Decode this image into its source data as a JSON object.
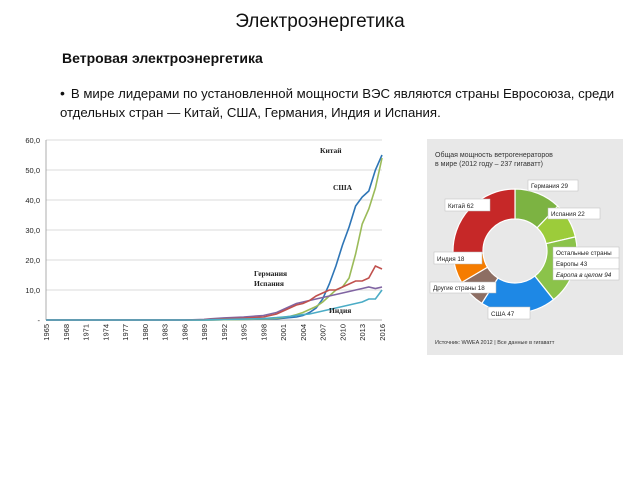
{
  "slide": {
    "title": "Электроэнергетика",
    "subtitle": "Ветровая электроэнергетика",
    "bullet_symbol": "•",
    "bullet": "В мире лидерами по установленной мощности ВЭС являются страны Евросоюза, среди отдельных стран — Китай, США, Германия, Индия и Испания."
  },
  "chart_data": [
    {
      "type": "line",
      "title": "",
      "xlabel": "",
      "ylabel": "",
      "ylim": [
        0,
        60
      ],
      "yticks": [
        "60,0",
        "50,0",
        "40,0",
        "30,0",
        "20,0",
        "10,0",
        "-"
      ],
      "xticks": [
        "1965",
        "1968",
        "1971",
        "1974",
        "1977",
        "1980",
        "1983",
        "1986",
        "1989",
        "1992",
        "1995",
        "1998",
        "2001",
        "2004",
        "2007",
        "2010",
        "2013",
        "2016"
      ],
      "grid": true,
      "x": [
        1965,
        1968,
        1971,
        1974,
        1977,
        1980,
        1983,
        1986,
        1989,
        1990,
        1992,
        1995,
        1998,
        2000,
        2001,
        2002,
        2003,
        2004,
        2005,
        2006,
        2007,
        2008,
        2009,
        2010,
        2011,
        2012,
        2013,
        2014,
        2015,
        2016
      ],
      "series": [
        {
          "name": "Китай",
          "color": "#2e75b6",
          "values": [
            0,
            0,
            0,
            0,
            0,
            0,
            0,
            0,
            0,
            0,
            0.1,
            0.2,
            0.3,
            0.4,
            0.6,
            0.8,
            1.0,
            1.5,
            2.5,
            4,
            7,
            12,
            18,
            25,
            31,
            38,
            41,
            43,
            50,
            55
          ]
        },
        {
          "name": "США",
          "color": "#9bbb59",
          "values": [
            0,
            0,
            0,
            0,
            0,
            0,
            0,
            0,
            0,
            0,
            0.1,
            0.2,
            0.4,
            0.6,
            0.9,
            1.2,
            1.8,
            2.5,
            3.5,
            4.5,
            6,
            8,
            10,
            11,
            14,
            22,
            32,
            37,
            44,
            54
          ]
        },
        {
          "name": "Германия",
          "color": "#8064a2",
          "values": [
            0,
            0,
            0,
            0,
            0,
            0,
            0,
            0,
            0.2,
            0.4,
            0.7,
            1.0,
            1.5,
            2.5,
            3.5,
            4.5,
            5.5,
            6,
            6.5,
            7,
            7.5,
            8,
            8.5,
            9,
            9.5,
            10,
            10.5,
            11,
            10.5,
            11
          ]
        },
        {
          "name": "Испания",
          "color": "#c0504d",
          "values": [
            0,
            0,
            0,
            0,
            0,
            0,
            0,
            0,
            0.1,
            0.2,
            0.4,
            0.6,
            1.0,
            2,
            3,
            4,
            5,
            5.5,
            6.5,
            8,
            9,
            10,
            10,
            11,
            12,
            13,
            13,
            14,
            18,
            17
          ]
        },
        {
          "name": "Индия",
          "color": "#4bacc6",
          "values": [
            0,
            0,
            0,
            0,
            0,
            0,
            0,
            0,
            0,
            0.1,
            0.2,
            0.3,
            0.5,
            0.8,
            1,
            1.2,
            1.5,
            1.8,
            2,
            2.5,
            3,
            3.5,
            4,
            4.5,
            5,
            5.5,
            6,
            7,
            7,
            10
          ]
        }
      ],
      "labels_shown": [
        "Китай",
        "США",
        "Германия",
        "Испания",
        "Индия"
      ]
    },
    {
      "type": "pie",
      "title": "Общая мощность ветрогенераторов в мире (2012 году — 237 гигаватт)",
      "title_line1": "Общая мощность ветрогенераторов",
      "title_line2": "в мире (2012 году – 237 гигаватт)",
      "source": "Источник: WWEA 2012 | Все данные в гигаватт",
      "slices": [
        {
          "label": "Германия",
          "value": 29,
          "color": "#7cb342"
        },
        {
          "label": "Испания",
          "value": 22,
          "color": "#9ccc3a"
        },
        {
          "label": "Остальные страны Европы",
          "value": 43,
          "color": "#8bc34a",
          "sub": "Европа в целом 94"
        },
        {
          "label": "США",
          "value": 47,
          "color": "#1e88e5"
        },
        {
          "label": "Другие страны",
          "value": 18,
          "color": "#8d6e63"
        },
        {
          "label": "Индия",
          "value": 18,
          "color": "#f57c00"
        },
        {
          "label": "Китай",
          "value": 62,
          "color": "#c62828"
        }
      ],
      "slice_labels": [
        "Германия 29",
        "Испания 22",
        "Остальные страны",
        "Европы 43",
        "Европа в целом 94",
        "США 47",
        "Другие страны 18",
        "Индия 18",
        "Китай 62"
      ]
    }
  ]
}
